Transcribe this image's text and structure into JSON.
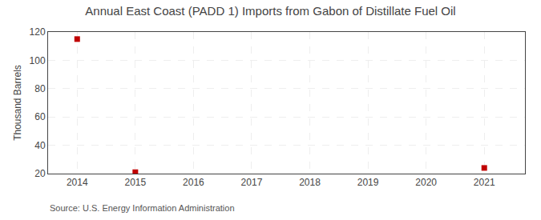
{
  "chart_data": {
    "type": "scatter",
    "title": "Annual East Coast (PADD 1) Imports from Gabon of Distillate Fuel Oil",
    "y_label": "Thousand Barrels",
    "x": [
      2014,
      2015,
      2021
    ],
    "values": [
      115,
      21,
      24
    ],
    "color": "#c00000",
    "marker": "square",
    "xlim": [
      2013.5,
      2021.7
    ],
    "xticks": [
      2014,
      2015,
      2016,
      2017,
      2018,
      2019,
      2020,
      2021
    ],
    "ylim": [
      20,
      120
    ],
    "yticks": [
      20,
      40,
      60,
      80,
      100,
      120
    ],
    "grid": true,
    "annotations": [
      "Source: U.S. Energy Information Administration"
    ]
  }
}
